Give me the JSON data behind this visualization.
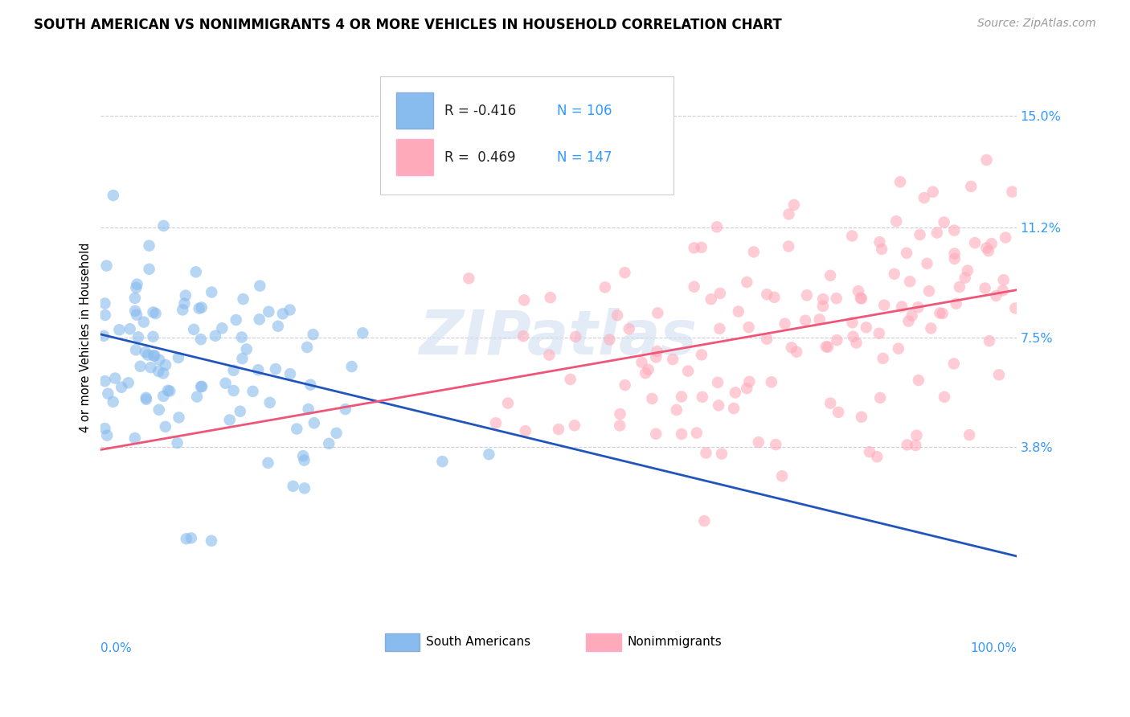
{
  "title": "SOUTH AMERICAN VS NONIMMIGRANTS 4 OR MORE VEHICLES IN HOUSEHOLD CORRELATION CHART",
  "source": "Source: ZipAtlas.com",
  "ylabel": "4 or more Vehicles in Household",
  "ytick_labels": [
    "3.8%",
    "7.5%",
    "11.2%",
    "15.0%"
  ],
  "ytick_values": [
    0.038,
    0.075,
    0.112,
    0.15
  ],
  "xlim": [
    0.0,
    1.0
  ],
  "ylim": [
    -0.018,
    0.168
  ],
  "legend_blue_r": "R = -0.416",
  "legend_blue_n": "N = 106",
  "legend_pink_r": "R =  0.469",
  "legend_pink_n": "N = 147",
  "blue_color": "#88BBEE",
  "pink_color": "#FFAABB",
  "blue_line_color": "#2255BB",
  "pink_line_color": "#EE5577",
  "watermark": "ZIPatlas",
  "title_fontsize": 12,
  "source_fontsize": 10,
  "blue_slope": -0.075,
  "blue_intercept": 0.076,
  "pink_slope": 0.054,
  "pink_intercept": 0.037
}
